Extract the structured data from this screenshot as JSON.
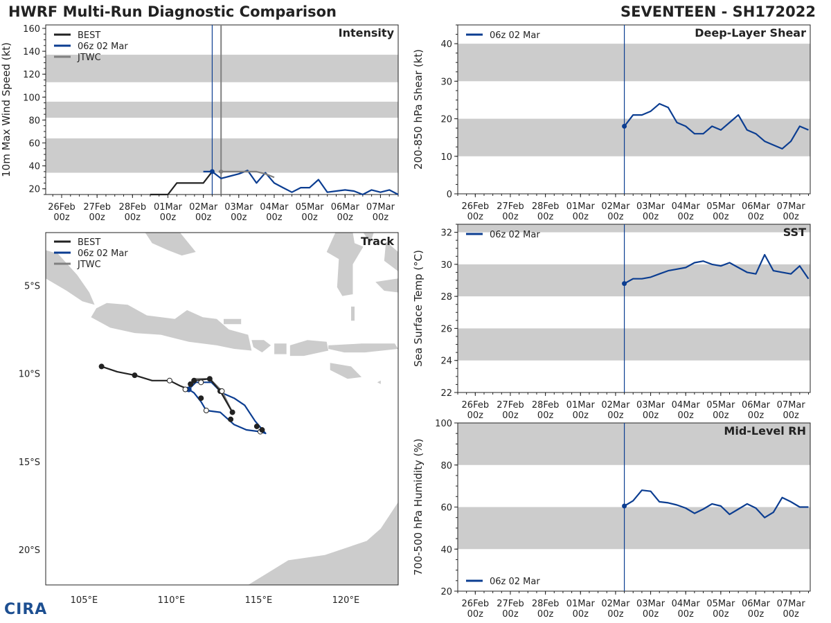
{
  "title_left": "HWRF Multi-Run Diagnostic Comparison",
  "title_right": "SEVENTEEN - SH172022",
  "logo_text": "CIRA",
  "colors": {
    "best": "#222222",
    "run": "#0b3d91",
    "jtwc": "#808080",
    "band": "#cccccc",
    "land": "#cccccc"
  },
  "x_ticks": [
    "26Feb",
    "27Feb",
    "28Feb",
    "01Mar",
    "02Mar",
    "03Mar",
    "04Mar",
    "05Mar",
    "06Mar",
    "07Mar"
  ],
  "x_tick_hour": "00z",
  "chart_data": [
    {
      "id": "intensity",
      "type": "line",
      "title": "Intensity",
      "ylabel": "10m Max Wind Speed (kt)",
      "xlim": [
        -0.45,
        9.5
      ],
      "ylim": [
        15,
        163
      ],
      "yticks": [
        20,
        40,
        60,
        80,
        100,
        120,
        140,
        160
      ],
      "bands": [
        [
          34,
          64
        ],
        [
          82,
          96
        ],
        [
          113,
          137
        ]
      ],
      "init_lines": [
        4.25,
        4.5
      ],
      "legend": [
        "BEST",
        "06z 02 Mar",
        "JTWC"
      ],
      "series": [
        {
          "name": "BEST",
          "color": "#222222",
          "x": [
            2.5,
            2.75,
            3.0,
            3.25,
            3.5,
            4.0,
            4.25
          ],
          "y": [
            15,
            15,
            15,
            25,
            25,
            25,
            35
          ]
        },
        {
          "name": "06z 02 Mar",
          "color": "#0b3d91",
          "x": [
            4.0,
            4.25,
            4.5,
            4.75,
            5.0,
            5.25,
            5.5,
            5.75,
            6.0,
            6.25,
            6.5,
            6.75,
            7.0,
            7.25,
            7.5,
            7.75,
            8.0,
            8.25,
            8.5,
            8.75,
            9.0,
            9.25,
            9.5
          ],
          "y": [
            35,
            35,
            29,
            31,
            33,
            36,
            25,
            34,
            25,
            21,
            17,
            21,
            21,
            28,
            17,
            18,
            19,
            18,
            15,
            19,
            17,
            19,
            15
          ]
        },
        {
          "name": "JTWC",
          "color": "#808080",
          "x": [
            4.5,
            5.0,
            5.5,
            5.75,
            6.0
          ],
          "y": [
            35,
            35,
            35,
            33,
            30
          ]
        }
      ]
    },
    {
      "id": "track",
      "type": "map",
      "title": "Track",
      "xlabel_ticks": [
        "105°E",
        "110°E",
        "115°E",
        "120°E"
      ],
      "ylabel_ticks": [
        "5°S",
        "10°S",
        "15°S",
        "20°S"
      ],
      "lon_ticks": [
        105,
        110,
        115,
        120
      ],
      "lat_ticks": [
        -5,
        -10,
        -15,
        -20
      ],
      "lon_range": [
        102.8,
        123.0
      ],
      "lat_range": [
        -22.0,
        -2.0
      ],
      "legend": [
        "BEST",
        "06z 02 Mar",
        "JTWC"
      ],
      "series": [
        {
          "name": "BEST",
          "color": "#222222",
          "lon": [
            106.0,
            106.9,
            107.9,
            108.9,
            109.9,
            110.5,
            111.0,
            111.1,
            111.3,
            112.2,
            112.8,
            113.5
          ],
          "lat": [
            -9.6,
            -9.9,
            -10.1,
            -10.4,
            -10.4,
            -10.7,
            -10.9,
            -10.6,
            -10.4,
            -10.3,
            -11.0,
            -12.2
          ],
          "open_markers": [
            4
          ]
        },
        {
          "name": "06z 02 Mar",
          "color": "#0b3d91",
          "lon": [
            111.0,
            111.4,
            111.7,
            112.3,
            112.9,
            113.6,
            114.2,
            114.8,
            115.4,
            115.1,
            114.3,
            113.6,
            112.8,
            112.0,
            111.7,
            111.3,
            111.0
          ],
          "lat": [
            -10.9,
            -10.5,
            -10.5,
            -10.5,
            -11.1,
            -11.4,
            -11.8,
            -12.7,
            -13.4,
            -13.3,
            -13.2,
            -12.9,
            -12.2,
            -12.1,
            -11.6,
            -11.1,
            -10.9
          ],
          "open_markers": [
            2,
            9,
            13
          ]
        },
        {
          "name": "JTWC",
          "color": "#808080",
          "lon": [
            111.0,
            111.4,
            112.2,
            112.9,
            113.5
          ],
          "lat": [
            -10.9,
            -10.3,
            -10.3,
            -11.0,
            -12.2
          ],
          "open_markers": [
            3
          ]
        }
      ],
      "extra_points": [
        {
          "lon": 111.7,
          "lat": -11.4,
          "open": false
        },
        {
          "lon": 113.4,
          "lat": -12.6,
          "open": false
        },
        {
          "lon": 114.9,
          "lat": -13.0,
          "open": false
        },
        {
          "lon": 115.2,
          "lat": -13.2,
          "open": false
        },
        {
          "lon": 110.8,
          "lat": -10.9,
          "open": true
        }
      ]
    },
    {
      "id": "shear",
      "type": "line",
      "title": "Deep-Layer Shear",
      "ylabel": "200-850 hPa Shear (kt)",
      "xlim": [
        -0.5,
        9.55
      ],
      "ylim": [
        0,
        45
      ],
      "yticks": [
        0,
        10,
        20,
        30,
        40
      ],
      "bands": [
        [
          10,
          20
        ],
        [
          30,
          40
        ]
      ],
      "init_lines": [
        4.25
      ],
      "legend": [
        "06z 02 Mar"
      ],
      "series": [
        {
          "name": "06z 02 Mar",
          "color": "#0b3d91",
          "x": [
            4.25,
            4.5,
            4.75,
            5.0,
            5.25,
            5.5,
            5.75,
            6.0,
            6.25,
            6.5,
            6.75,
            7.0,
            7.25,
            7.5,
            7.75,
            8.0,
            8.25,
            8.5,
            8.75,
            9.0,
            9.25,
            9.5
          ],
          "y": [
            18,
            21,
            21,
            22,
            24,
            23,
            19,
            18,
            16,
            16,
            18,
            17,
            19,
            21,
            17,
            16,
            14,
            13,
            12,
            14,
            18,
            17
          ]
        }
      ]
    },
    {
      "id": "sst",
      "type": "line",
      "title": "SST",
      "ylabel": "Sea Surface Temp (°C)",
      "xlim": [
        -0.5,
        9.55
      ],
      "ylim": [
        22,
        32.5
      ],
      "yticks": [
        22,
        24,
        26,
        28,
        30,
        32
      ],
      "bands": [
        [
          24,
          26
        ],
        [
          28,
          30
        ],
        [
          32,
          34
        ]
      ],
      "init_lines": [
        4.25
      ],
      "legend": [
        "06z 02 Mar"
      ],
      "series": [
        {
          "name": "06z 02 Mar",
          "color": "#0b3d91",
          "x": [
            4.25,
            4.5,
            4.75,
            5.0,
            5.25,
            5.5,
            5.75,
            6.0,
            6.25,
            6.5,
            6.75,
            7.0,
            7.25,
            7.5,
            7.75,
            8.0,
            8.25,
            8.5,
            8.75,
            9.0,
            9.25,
            9.5
          ],
          "y": [
            28.8,
            29.1,
            29.1,
            29.2,
            29.4,
            29.6,
            29.7,
            29.8,
            30.1,
            30.2,
            30.0,
            29.9,
            30.1,
            29.8,
            29.5,
            29.4,
            30.6,
            29.6,
            29.5,
            29.4,
            29.9,
            29.1
          ]
        }
      ]
    },
    {
      "id": "rh",
      "type": "line",
      "title": "Mid-Level RH",
      "ylabel": "700-500 hPa Humidity (%)",
      "xlim": [
        -0.5,
        9.55
      ],
      "ylim": [
        20,
        100
      ],
      "yticks": [
        20,
        40,
        60,
        80,
        100
      ],
      "bands": [
        [
          40,
          60
        ],
        [
          80,
          100
        ]
      ],
      "init_lines": [
        4.25
      ],
      "legend": [
        "06z 02 Mar"
      ],
      "legend_pos": "bottom-left",
      "series": [
        {
          "name": "06z 02 Mar",
          "color": "#0b3d91",
          "x": [
            4.25,
            4.5,
            4.75,
            5.0,
            5.25,
            5.5,
            5.75,
            6.0,
            6.25,
            6.5,
            6.75,
            7.0,
            7.25,
            7.5,
            7.75,
            8.0,
            8.25,
            8.5,
            8.75,
            9.0,
            9.25,
            9.5
          ],
          "y": [
            60.5,
            63,
            68,
            67.5,
            62.5,
            62,
            61,
            59.5,
            57,
            59,
            61.5,
            60.5,
            56.5,
            59,
            61.5,
            59.5,
            55,
            57.5,
            64.5,
            62.5,
            60,
            60
          ]
        }
      ]
    }
  ]
}
